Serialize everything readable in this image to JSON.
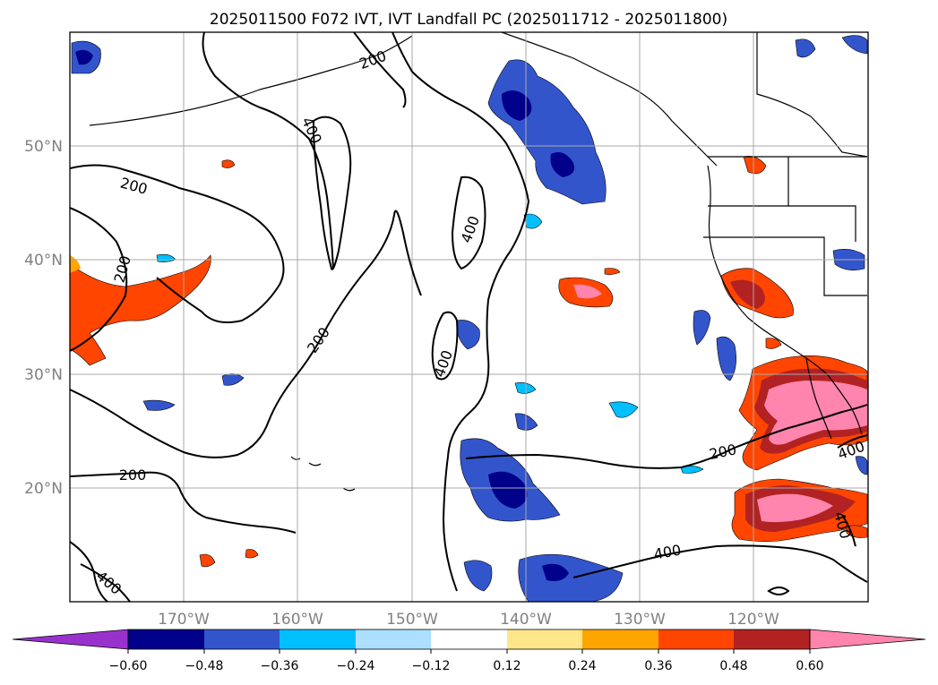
{
  "title": "2025011500 F072 IVT, IVT Landfall PC (2025011712 - 2025011800)",
  "map": {
    "lon_range": [
      -180,
      -110
    ],
    "lat_range": [
      10,
      60
    ],
    "grid": true,
    "lat_ticks": [
      "50°N",
      "40°N",
      "30°N",
      "20°N"
    ],
    "lon_ticks": [
      "170°W",
      "160°W",
      "150°W",
      "140°W",
      "130°W",
      "120°W"
    ]
  },
  "ivt_contour_labels": [
    "200",
    "200",
    "200",
    "200",
    "200",
    "200",
    "400",
    "400",
    "400",
    "400",
    "400",
    "400",
    "400"
  ],
  "colorbar": {
    "extend": "both",
    "colors": [
      "#9932CC",
      "#00008B",
      "#3355CC",
      "#00BFFF",
      "#ADDFFF",
      "#FFFFFF",
      "#FFE68A",
      "#FFA500",
      "#FF4500",
      "#B22222",
      "#FF85AE"
    ],
    "tick_labels": [
      "−0.60",
      "−0.48",
      "−0.36",
      "−0.24",
      "−0.12",
      "0.12",
      "0.24",
      "0.36",
      "0.48",
      "0.60"
    ]
  }
}
